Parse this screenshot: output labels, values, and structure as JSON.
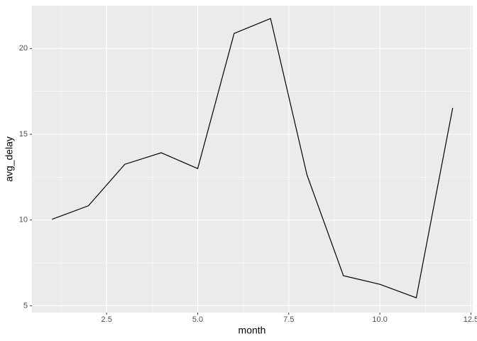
{
  "chart_data": {
    "type": "line",
    "x": [
      1,
      2,
      3,
      4,
      5,
      6,
      7,
      8,
      9,
      10,
      11,
      12
    ],
    "series": [
      {
        "name": "avg_delay",
        "color": "#000000",
        "values": [
          10.04,
          10.83,
          13.25,
          13.92,
          13.0,
          20.88,
          21.75,
          12.63,
          6.75,
          6.25,
          5.46,
          16.54
        ]
      }
    ],
    "x_label": "month",
    "y_label": "avg_delay",
    "xlim": [
      0.45,
      12.55
    ],
    "ylim": [
      4.6,
      22.5
    ],
    "xticks": [
      2.5,
      {
        "value": 5,
        "label": "5.0"
      },
      7.5,
      {
        "value": 10,
        "label": "10.0"
      },
      12.5
    ],
    "yticks": [
      5,
      10,
      15,
      20
    ],
    "grid": true
  }
}
